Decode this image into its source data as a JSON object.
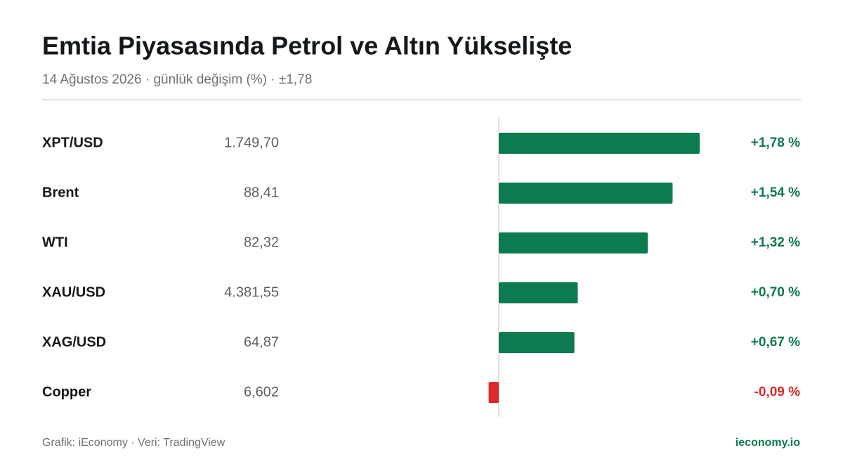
{
  "chart_data": {
    "type": "bar",
    "title": "Emtia Piyasasında Petrol ve Altın Yükselişte",
    "subtitle": "14 Ağustos 2026 · günlük değişim (%) · ±1,78",
    "categories": [
      "XPT/USD",
      "Brent",
      "WTI",
      "XAU/USD",
      "XAG/USD",
      "Copper"
    ],
    "prices": [
      "1.749,70",
      "88,41",
      "82,32",
      "4.381,55",
      "64,87",
      "6,602"
    ],
    "values": [
      1.78,
      1.54,
      1.32,
      0.7,
      0.67,
      -0.09
    ],
    "value_labels": [
      "+1,78 %",
      "+1,54 %",
      "+1,32 %",
      "+0,70 %",
      "+0,67 %",
      "-0,09 %"
    ],
    "xlim": [
      -1.78,
      1.78
    ],
    "color": "#0e7a4f",
    "negative_color": "#dc2a2a",
    "source": "Grafik: iEconomy · Veri: TradingView",
    "site": "ieconomy.io"
  }
}
